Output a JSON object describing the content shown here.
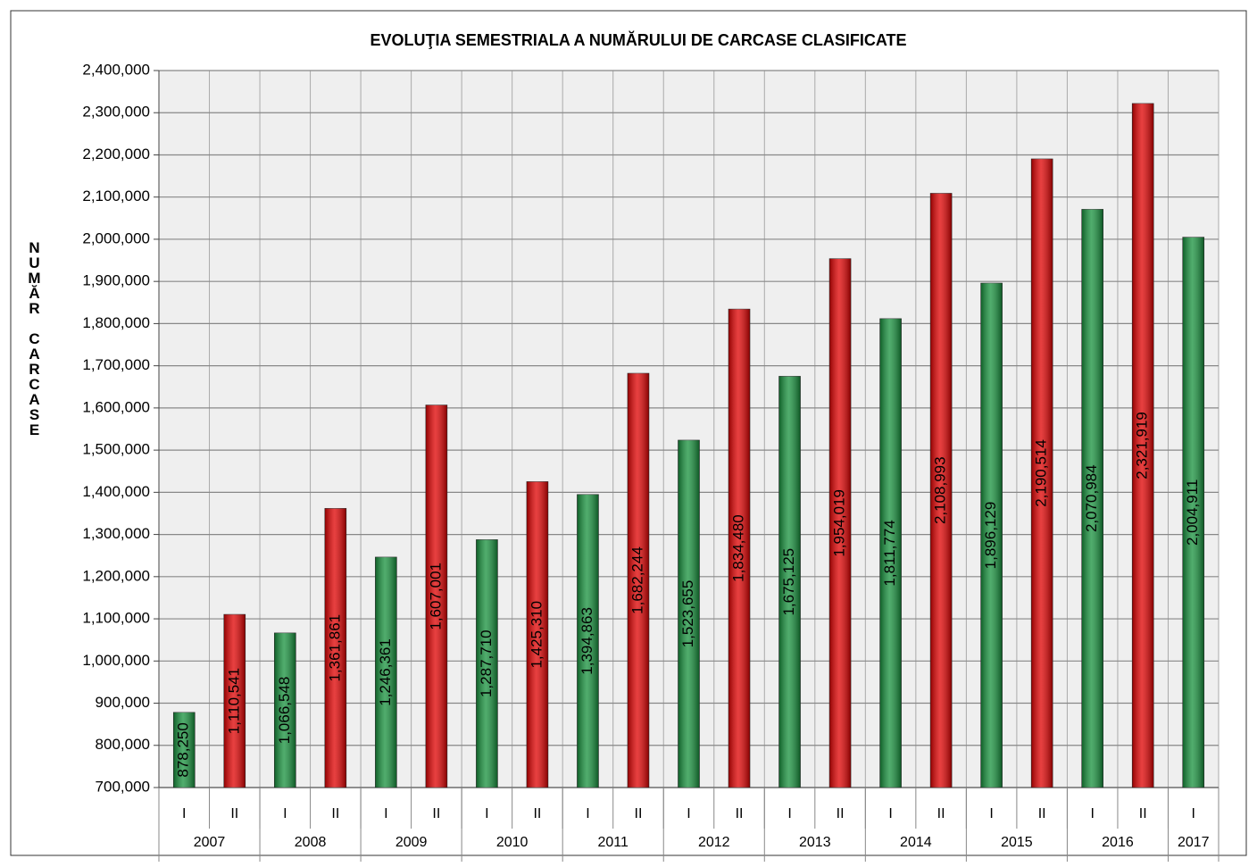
{
  "chart_data": {
    "type": "bar",
    "title": "EVOLUŢIA SEMESTRIALA A NUMĂRULUI DE CARCASE CLASIFICATE",
    "y_label": "NUMĂR CARCASE",
    "categories": [
      "I",
      "II",
      "I",
      "II",
      "I",
      "II",
      "I",
      "II",
      "I",
      "II",
      "I",
      "II",
      "I",
      "II",
      "I",
      "II",
      "I",
      "II",
      "I",
      "II",
      "I"
    ],
    "x_groups": [
      "2007",
      "2008",
      "2009",
      "2010",
      "2011",
      "2012",
      "2013",
      "2014",
      "2015",
      "2016",
      "2017"
    ],
    "values": [
      878250,
      1110541,
      1066548,
      1361861,
      1246361,
      1607001,
      1287710,
      1425310,
      1394863,
      1682244,
      1523655,
      1834480,
      1675125,
      1954019,
      1811774,
      2108993,
      1896129,
      2190514,
      2070984,
      2321919,
      2004911
    ],
    "value_labels": [
      "878,250",
      "1,110,541",
      "1,066,548",
      "1,361,861",
      "1,246,361",
      "1,607,001",
      "1,287,710",
      "1,425,310",
      "1,394,863",
      "1,682,244",
      "1,523,655",
      "1,834,480",
      "1,675,125",
      "1,954,019",
      "1,811,774",
      "2,108,993",
      "1,896,129",
      "2,190,514",
      "2,070,984",
      "2,321,919",
      "2,004,911"
    ],
    "colors": [
      "#16913c",
      "#e00000",
      "#16913c",
      "#e00000",
      "#16913c",
      "#e00000",
      "#16913c",
      "#e00000",
      "#16913c",
      "#e00000",
      "#16913c",
      "#e00000",
      "#16913c",
      "#e00000",
      "#16913c",
      "#e00000",
      "#16913c",
      "#e00000",
      "#16913c",
      "#e00000",
      "#16913c"
    ],
    "ylim": [
      700000,
      2400000
    ],
    "yticks": [
      {
        "value": 700000,
        "label": "700,000"
      },
      {
        "value": 800000,
        "label": "800,000"
      },
      {
        "value": 900000,
        "label": "900,000"
      },
      {
        "value": 1000000,
        "label": "1,000,000"
      },
      {
        "value": 1100000,
        "label": "1,100,000"
      },
      {
        "value": 1200000,
        "label": "1,200,000"
      },
      {
        "value": 1300000,
        "label": "1,300,000"
      },
      {
        "value": 1400000,
        "label": "1,400,000"
      },
      {
        "value": 1500000,
        "label": "1,500,000"
      },
      {
        "value": 1600000,
        "label": "1,600,000"
      },
      {
        "value": 1700000,
        "label": "1,700,000"
      },
      {
        "value": 1800000,
        "label": "1,800,000"
      },
      {
        "value": 1900000,
        "label": "1,900,000"
      },
      {
        "value": 2000000,
        "label": "2,000,000"
      },
      {
        "value": 2100000,
        "label": "2,100,000"
      },
      {
        "value": 2200000,
        "label": "2,200,000"
      },
      {
        "value": 2300000,
        "label": "2,300,000"
      },
      {
        "value": 2400000,
        "label": "2,400,000"
      }
    ],
    "grid": true
  }
}
